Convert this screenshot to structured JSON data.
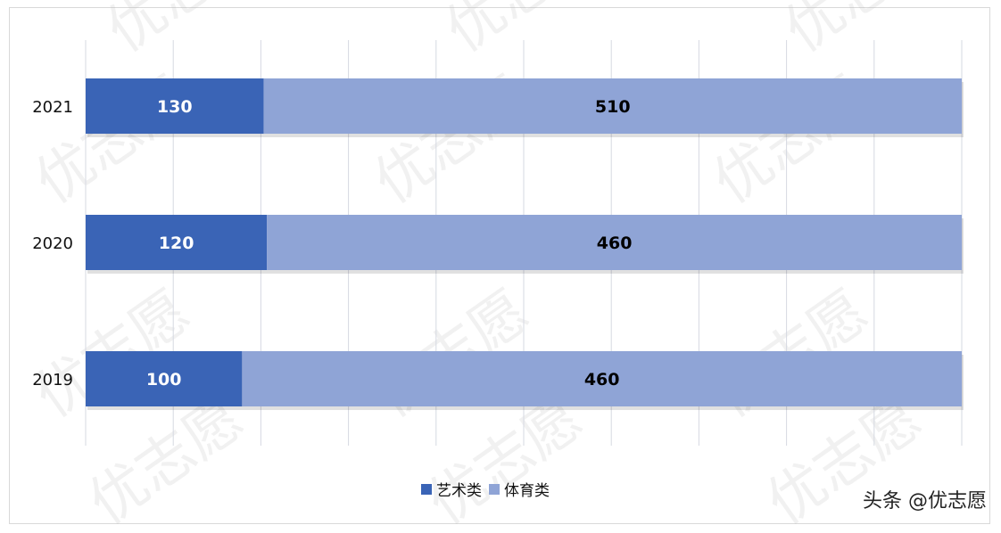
{
  "chart_data": {
    "type": "bar",
    "orientation": "horizontal",
    "stacking": "percent",
    "categories": [
      "2021",
      "2020",
      "2019"
    ],
    "series": [
      {
        "name": "艺术类",
        "values": [
          130,
          120,
          100
        ],
        "color": "#3a64b6",
        "label_color": "#ffffff"
      },
      {
        "name": "体育类",
        "values": [
          510,
          460,
          460
        ],
        "color": "#8fa4d6",
        "label_color": "#000000"
      }
    ],
    "xlim": [
      0,
      100
    ],
    "grid": true,
    "legend": "bottom"
  },
  "watermark": "优志愿",
  "credit": "头条 @优志愿"
}
